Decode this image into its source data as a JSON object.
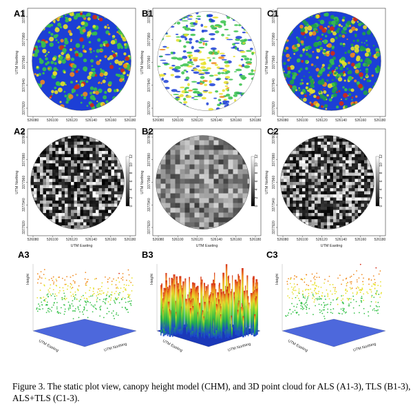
{
  "panels": {
    "A1": {
      "label": "A1"
    },
    "B1": {
      "label": "B1"
    },
    "C1": {
      "label": "C1"
    },
    "A2": {
      "label": "A2"
    },
    "B2": {
      "label": "B2"
    },
    "C2": {
      "label": "C2"
    },
    "A3": {
      "label": "A3"
    },
    "B3": {
      "label": "B3"
    },
    "C3": {
      "label": "C3"
    }
  },
  "axes": {
    "northing_label": "UTM Northing",
    "easting_label": "UTM Easting",
    "height_label": "Height",
    "row1_x_ticks": [
      "526080",
      "526100",
      "526120",
      "526140",
      "526160",
      "526180"
    ],
    "row1_y_ticks": [
      "3377920",
      "3377940",
      "3377960",
      "3377980",
      "3378000"
    ],
    "row2_x_ticks": [
      "526080",
      "526100",
      "526120",
      "526140",
      "526160",
      "526180"
    ],
    "row2_y_ticks": [
      "3377920",
      "3377940",
      "3377960",
      "3377980",
      "3378000"
    ],
    "legend_ticks": [
      "0",
      "2",
      "4",
      "6",
      "8",
      "10",
      "12"
    ]
  },
  "caption": {
    "text": "Figure 3. The static plot view, canopy height model (CHM), and 3D point cloud for ALS (A1-3), TLS (B1-3), ALS+TLS (C1-3)."
  },
  "colors": {
    "blue": "#1c3fd6",
    "green": "#37c24a",
    "yellow": "#e8e02a",
    "orange": "#f08a1e",
    "red": "#d42a14"
  }
}
